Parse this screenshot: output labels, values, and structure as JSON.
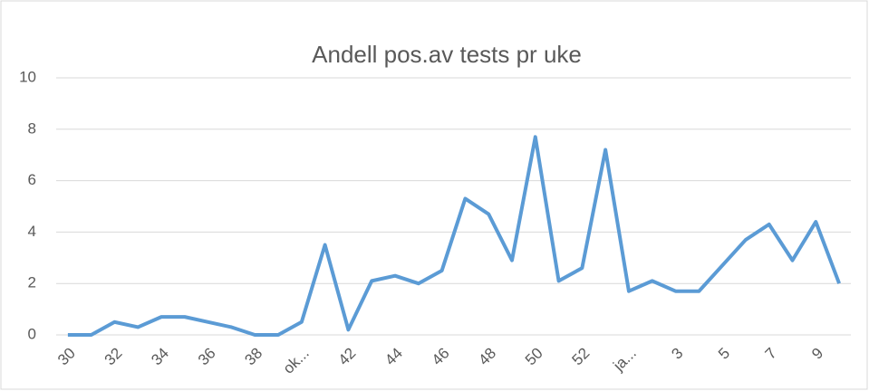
{
  "chart_data": {
    "type": "line",
    "title": "Andell pos.av tests pr uke",
    "categories": [
      "30",
      null,
      "32",
      null,
      "34",
      null,
      "36",
      null,
      "38",
      null,
      "ok...",
      null,
      "42",
      null,
      "44",
      null,
      "46",
      null,
      "48",
      null,
      "50",
      null,
      "52",
      null,
      "ja...",
      null,
      "3",
      null,
      "5",
      null,
      "7",
      null,
      "9",
      null
    ],
    "series": [
      {
        "name": "Andell pos.av tests pr uke",
        "color": "#5b9bd5",
        "values": [
          0,
          0,
          0.5,
          0.3,
          0.7,
          0.7,
          0.5,
          0.3,
          0,
          0,
          0.5,
          3.5,
          0.2,
          2.1,
          2.3,
          2.0,
          2.5,
          5.3,
          4.7,
          2.9,
          7.7,
          2.1,
          2.6,
          7.2,
          1.7,
          2.1,
          1.7,
          1.7,
          2.7,
          3.7,
          4.3,
          2.9,
          4.4,
          2.0
        ]
      }
    ],
    "ylim": [
      0,
      10
    ],
    "yticks": [
      0,
      2,
      4,
      6,
      8,
      10
    ],
    "grid": true
  }
}
